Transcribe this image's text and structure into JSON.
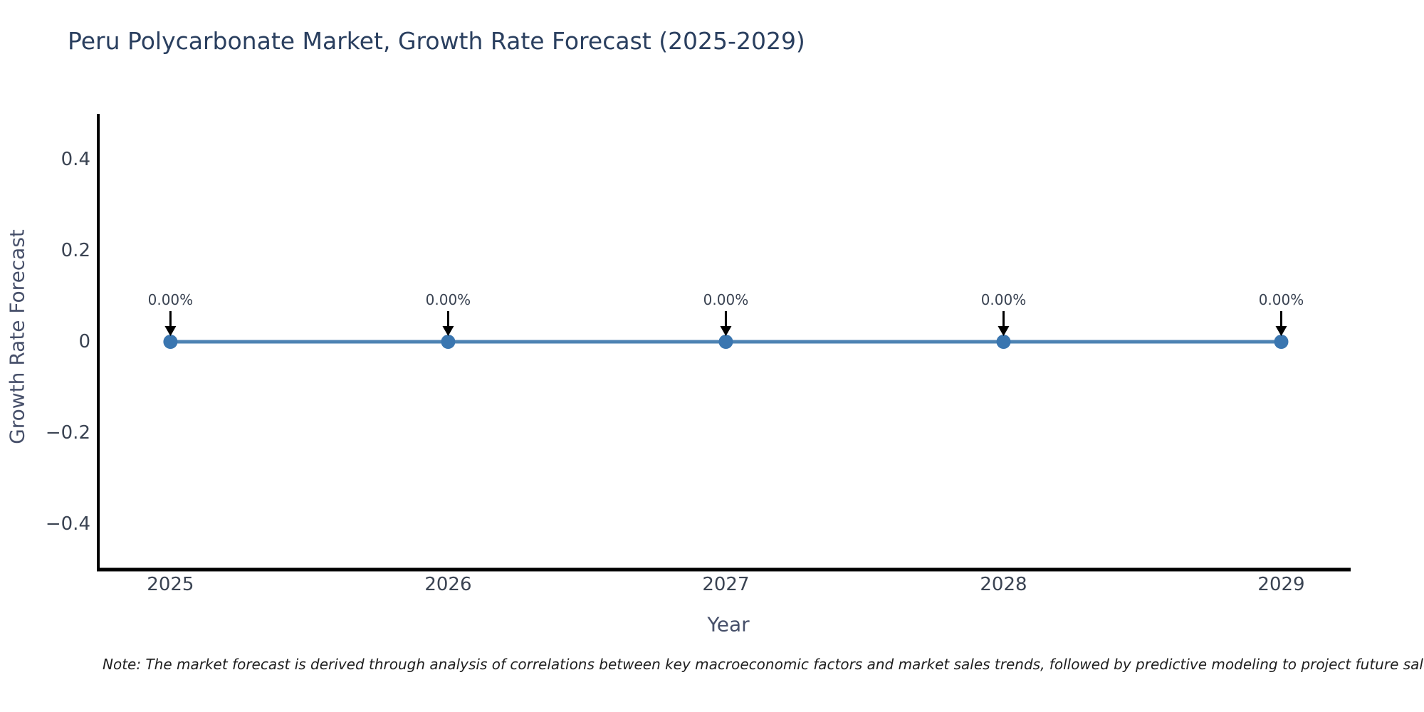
{
  "note": "Note: The market forecast is derived through analysis of correlations between key macroeconomic factors and market sales trends, followed by predictive modeling to project future sales",
  "chart_data": {
    "type": "line",
    "title": "Peru Polycarbonate Market, Growth Rate Forecast (2025-2029)",
    "xlabel": "Year",
    "ylabel": "Growth Rate Forecast",
    "x": [
      2025,
      2026,
      2027,
      2028,
      2029
    ],
    "values": [
      0,
      0,
      0,
      0,
      0
    ],
    "point_labels": [
      "0.00%",
      "0.00%",
      "0.00%",
      "0.00%",
      "0.00%"
    ],
    "xtick_values": [
      2025,
      2026,
      2027,
      2028,
      2029
    ],
    "xtick_labels": [
      "2025",
      "2026",
      "2027",
      "2028",
      "2029"
    ],
    "ytick_values": [
      0.4,
      0.2,
      0,
      -0.2,
      -0.4
    ],
    "ytick_labels": [
      "0.4",
      "0.2",
      "0",
      "−0.2",
      "−0.4"
    ],
    "xlim": [
      2024.74,
      2029.25
    ],
    "ylim": [
      -0.5,
      0.5
    ],
    "grid": false,
    "legend": false,
    "line_color": "#4d83b3",
    "marker_color": "#3a76b0",
    "axis_color": "#000000",
    "annotation_arrow_color": "#000000"
  }
}
